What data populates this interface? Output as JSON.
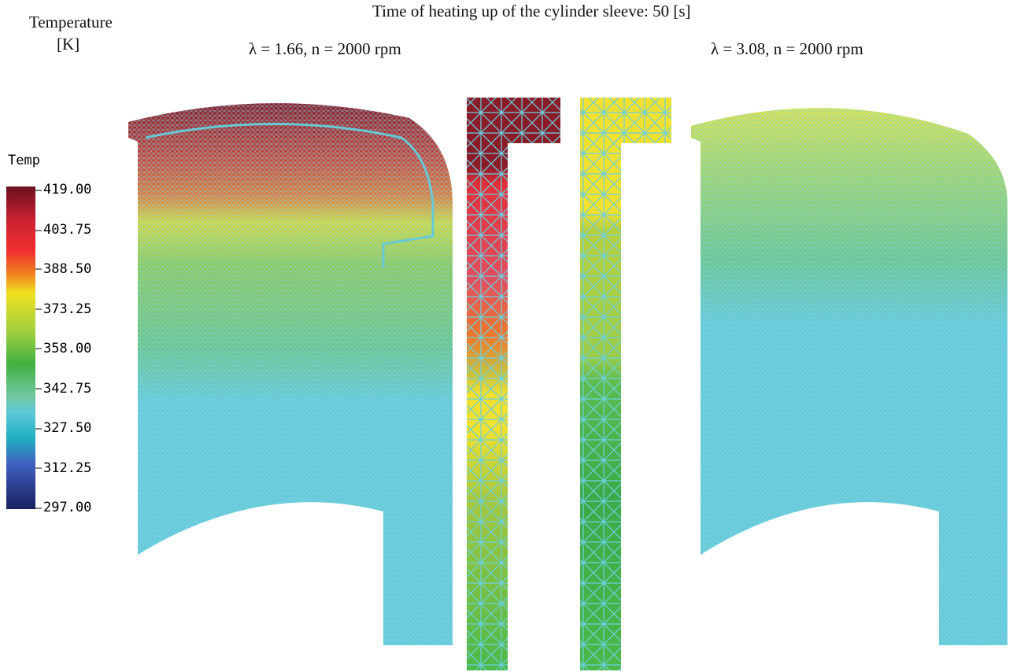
{
  "header": {
    "title": "Time of heating up of the cylinder sleeve: 50 [s]"
  },
  "legend": {
    "title": "Temperature",
    "unit": "[K]",
    "colorbar_title": "Temp",
    "labels": [
      "419.00",
      "403.75",
      "388.50",
      "373.25",
      "358.00",
      "342.75",
      "327.50",
      "312.25",
      "297.00"
    ]
  },
  "panels": [
    {
      "label": "λ = 1.66, n = 2000 rpm"
    },
    {
      "label": "λ = 3.08, n = 2000 rpm"
    }
  ]
}
